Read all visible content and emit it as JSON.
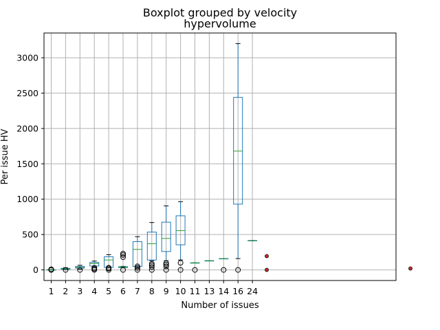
{
  "chart_data": {
    "type": "box",
    "suptitle": "Boxplot grouped by velocity",
    "title": "hypervolume",
    "xlabel": "Number of issues",
    "ylabel": "Per issue HV",
    "ylim": [
      -150,
      3350
    ],
    "yticks": [
      0,
      500,
      1000,
      1500,
      2000,
      2500,
      3000
    ],
    "grid": true,
    "categories": [
      "1",
      "2",
      "3",
      "4",
      "5",
      "6",
      "7",
      "8",
      "9",
      "10",
      "11",
      "13",
      "14",
      "16",
      "24"
    ],
    "boxes": [
      {
        "category": "1",
        "whislo": 0,
        "q1": 0,
        "med": 1,
        "q3": 2,
        "whishi": 5,
        "fliers": [
          0,
          3,
          6,
          8
        ]
      },
      {
        "category": "2",
        "whislo": 5,
        "q1": 10,
        "med": 15,
        "q3": 22,
        "whishi": 30,
        "fliers": [
          0
        ]
      },
      {
        "category": "3",
        "whislo": 10,
        "q1": 25,
        "med": 35,
        "q3": 50,
        "whishi": 65,
        "fliers": [
          0
        ]
      },
      {
        "category": "4",
        "whislo": 30,
        "q1": 55,
        "med": 90,
        "q3": 105,
        "whishi": 125,
        "fliers": [
          0,
          15,
          30
        ]
      },
      {
        "category": "5",
        "whislo": 30,
        "q1": 35,
        "med": 140,
        "q3": 185,
        "whishi": 215,
        "fliers": [
          0,
          20,
          30
        ]
      },
      {
        "category": "6",
        "whislo": 30,
        "q1": 33,
        "med": 40,
        "q3": 45,
        "whishi": 50,
        "fliers": [
          0,
          180,
          210,
          230
        ]
      },
      {
        "category": "7",
        "whislo": 45,
        "q1": 50,
        "med": 290,
        "q3": 400,
        "whishi": 470,
        "fliers": [
          0,
          30,
          50
        ]
      },
      {
        "category": "8",
        "whislo": 130,
        "q1": 140,
        "med": 370,
        "q3": 535,
        "whishi": 670,
        "fliers": [
          0,
          40,
          65,
          85
        ]
      },
      {
        "category": "9",
        "whislo": 130,
        "q1": 260,
        "med": 445,
        "q3": 675,
        "whishi": 905,
        "fliers": [
          0,
          50,
          75,
          95
        ]
      },
      {
        "category": "10",
        "whislo": 140,
        "q1": 355,
        "med": 555,
        "q3": 765,
        "whishi": 965,
        "fliers": [
          0,
          100
        ]
      },
      {
        "category": "11",
        "whislo": 100,
        "q1": 100,
        "med": 100,
        "q3": 100,
        "whishi": 100,
        "fliers": [
          0
        ]
      },
      {
        "category": "13",
        "whislo": 130,
        "q1": 130,
        "med": 130,
        "q3": 130,
        "whishi": 130,
        "fliers": []
      },
      {
        "category": "14",
        "whislo": 160,
        "q1": 160,
        "med": 160,
        "q3": 160,
        "whishi": 160,
        "fliers": [
          0
        ]
      },
      {
        "category": "16",
        "whislo": 160,
        "q1": 930,
        "med": 1680,
        "q3": 2440,
        "whishi": 3200,
        "fliers": [
          0
        ]
      },
      {
        "category": "24",
        "whislo": 415,
        "q1": 415,
        "med": 415,
        "q3": 415,
        "whishi": 415,
        "fliers": []
      }
    ],
    "extra_points": [
      {
        "slot": 16,
        "value": 195
      },
      {
        "slot": 16,
        "value": 0
      },
      {
        "slot": 26,
        "value": 20
      }
    ],
    "colors": {
      "box": "#1f77b4",
      "median": "#2ca02c",
      "whisker": "#1f77b4",
      "cap": "#000000",
      "flier": "#000000",
      "extra_fill": "#d62728",
      "grid": "#b0b0b0"
    }
  }
}
